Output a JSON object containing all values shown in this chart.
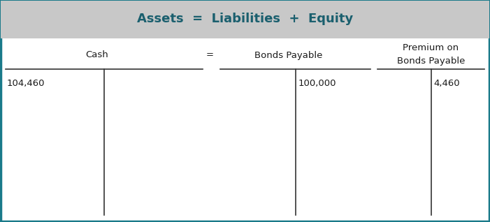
{
  "title": "Assets  =  Liabilities  +  Equity",
  "title_color": "#1a5f6e",
  "title_bg_color": "#c8c8c8",
  "outer_border_color": "#1a7a8a",
  "body_bg_color": "#ffffff",
  "t_account_1_label": "Cash",
  "t_account_1_debit": "104,460",
  "t_account_2_label": "Bonds Payable",
  "t_account_2_credit": "100,000",
  "t_account_3_label_line1": "Premium on",
  "t_account_3_label_line2": "Bonds Payable",
  "t_account_3_credit": "4,460",
  "equals_sign": "=",
  "text_color": "#1a1a1a",
  "line_color": "#333333",
  "font_size_title": 13,
  "font_size_label": 9.5,
  "font_size_value": 9.5,
  "figwidth": 7.01,
  "figheight": 3.18,
  "dpi": 100
}
